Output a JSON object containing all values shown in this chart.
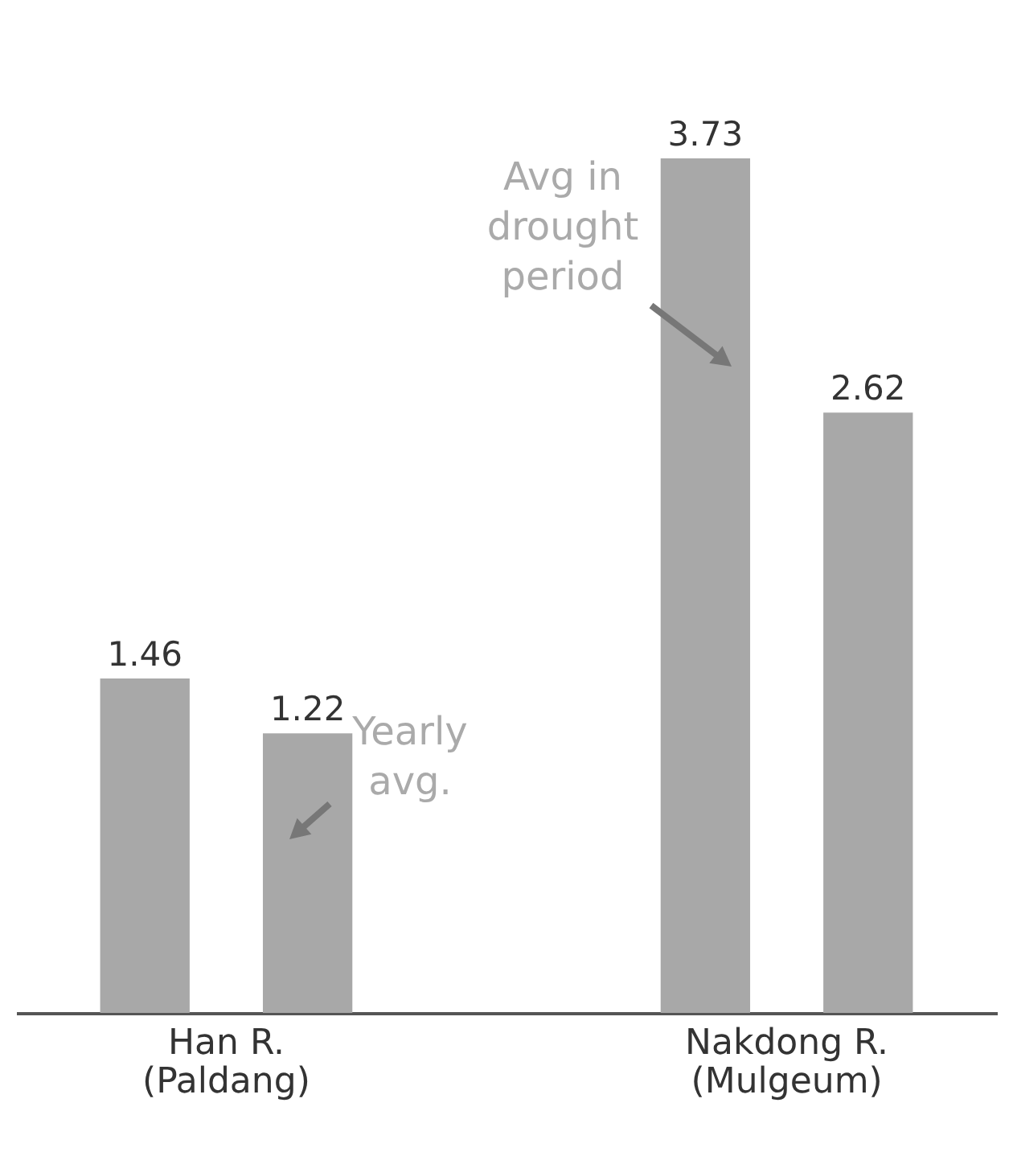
{
  "chart_data": {
    "type": "bar",
    "categories": [
      "Han R.\n(Paldang)",
      "Nakdong R.\n(Mulgeum)"
    ],
    "series": [
      {
        "color": "#a8a8a8",
        "values": [
          1.46,
          3.73
        ]
      },
      {
        "color": "#a8a8a8",
        "values": [
          1.22,
          2.62
        ]
      }
    ],
    "data_labels": true,
    "annotations": [
      "Avg in drought period",
      "Yearly avg."
    ]
  }
}
